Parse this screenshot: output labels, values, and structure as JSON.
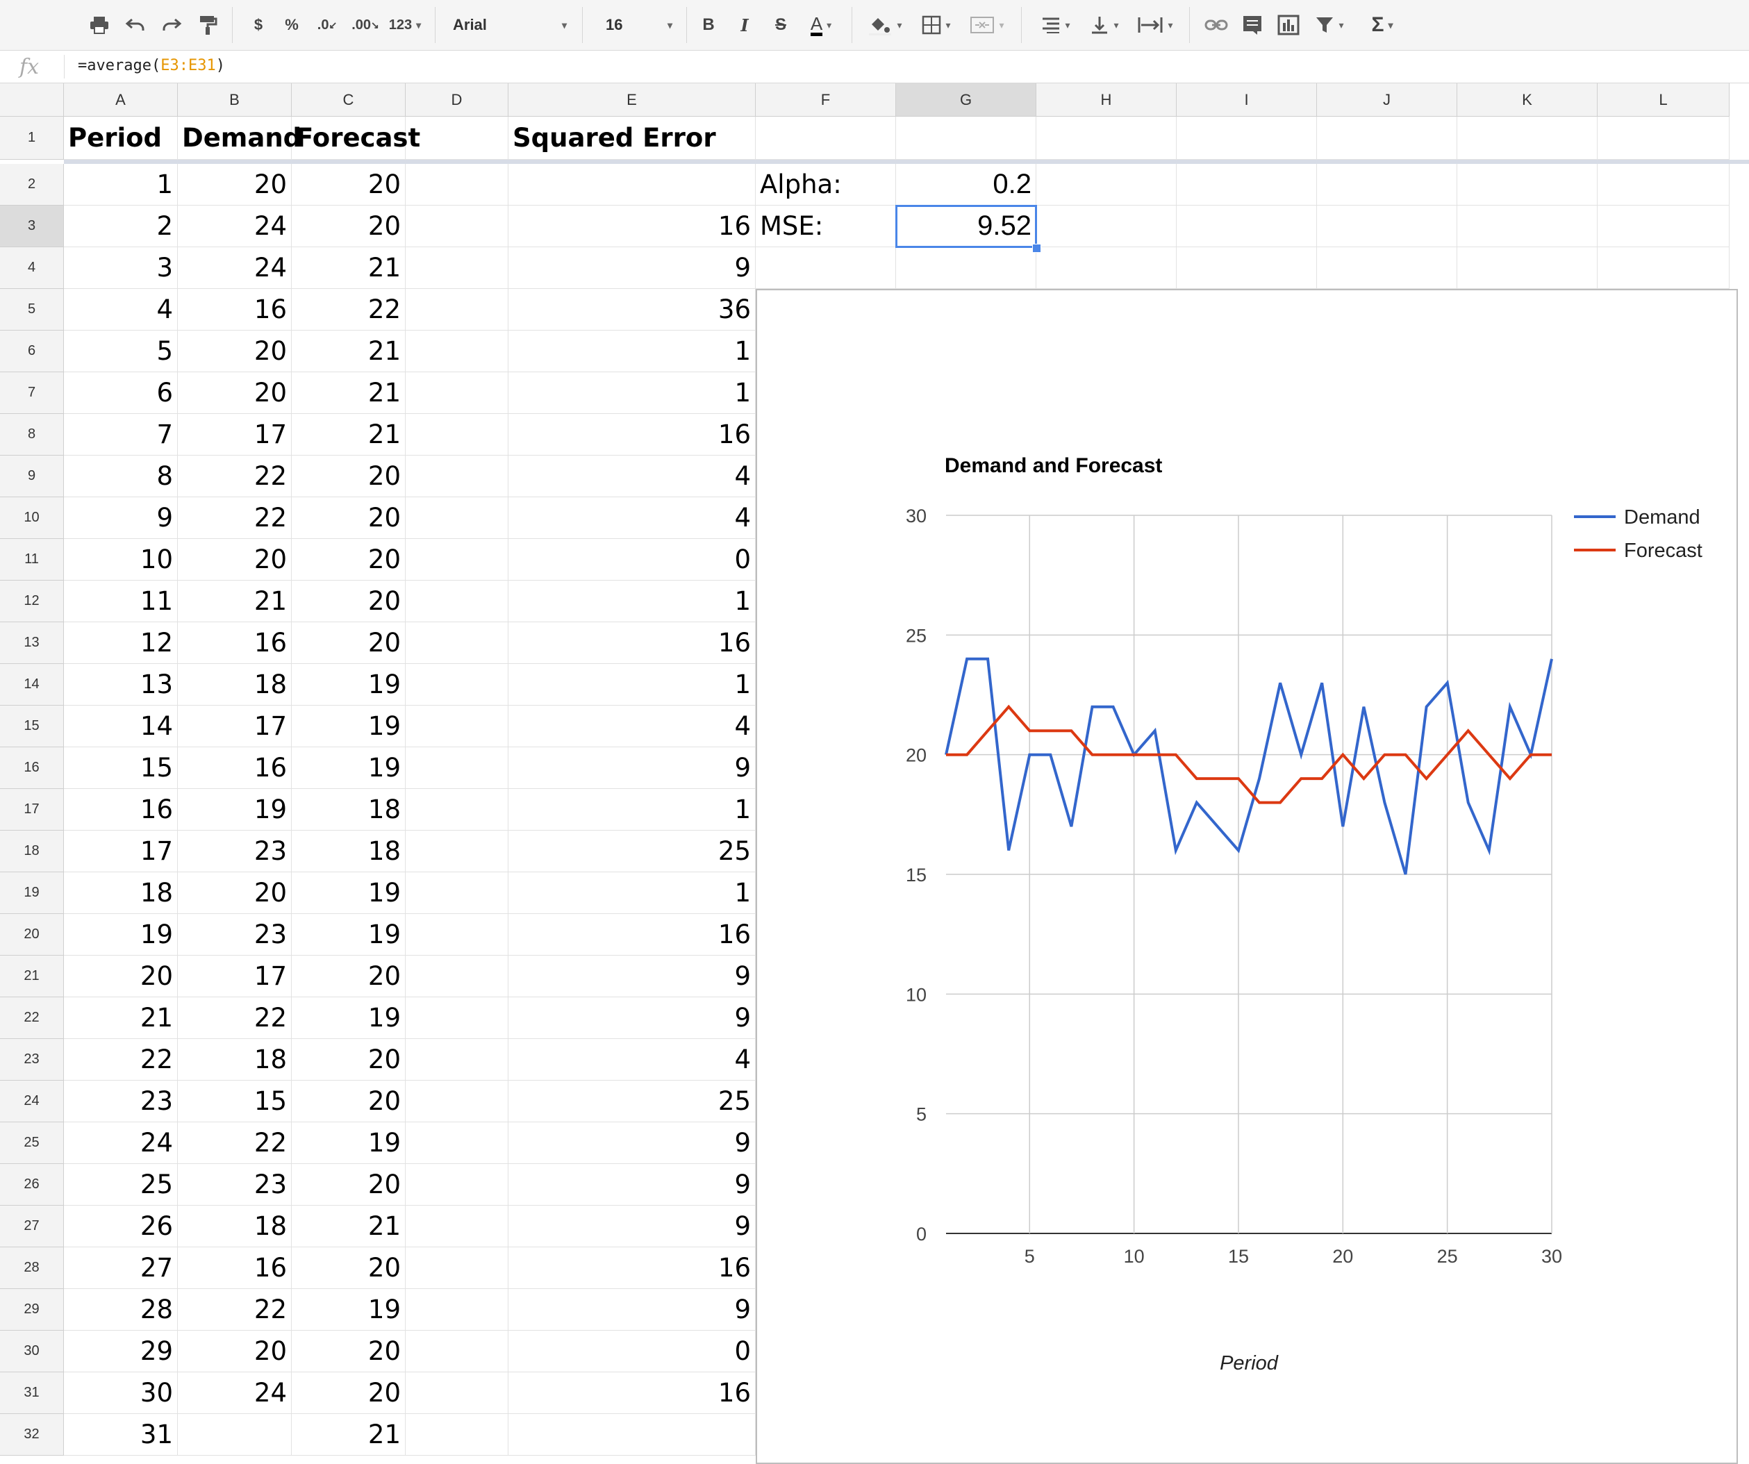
{
  "toolbar": {
    "font_name": "Arial",
    "font_size": "16",
    "number_format_label": "123",
    "currency_label": "$",
    "percent_label": "%",
    "decimal_decrease_label": ".0",
    "decimal_increase_label": ".00",
    "bold_label": "B",
    "italic_label": "I",
    "strike_label": "S",
    "text_color_label": "A",
    "sum_label": "Σ",
    "icons": [
      "print-icon",
      "undo-icon",
      "redo-icon",
      "paint-format-icon",
      "fill-color-icon",
      "borders-icon",
      "merge-icon",
      "align-icon",
      "valign-icon",
      "wrap-icon",
      "link-icon",
      "comment-icon",
      "chart-icon",
      "filter-icon",
      "functions-icon"
    ]
  },
  "formula_bar": {
    "fx_label": "fx",
    "formula_prefix": "=average(",
    "formula_ref": "E3:E31",
    "formula_suffix": ")"
  },
  "columns": [
    "A",
    "B",
    "C",
    "D",
    "E",
    "F",
    "G",
    "H",
    "I",
    "J",
    "K",
    "L"
  ],
  "selected_column": "G",
  "selected_row": 3,
  "header_row": {
    "A": "Period",
    "B": "Demand",
    "C": "Forecast",
    "E": "Squared Error"
  },
  "side_table": {
    "alpha_label": "Alpha:",
    "alpha_value": "0.2",
    "mse_label": "MSE:",
    "mse_value": "9.52"
  },
  "rows": [
    {
      "n": 2,
      "A": "1",
      "B": "20",
      "C": "20",
      "E": ""
    },
    {
      "n": 3,
      "A": "2",
      "B": "24",
      "C": "20",
      "E": "16"
    },
    {
      "n": 4,
      "A": "3",
      "B": "24",
      "C": "21",
      "E": "9"
    },
    {
      "n": 5,
      "A": "4",
      "B": "16",
      "C": "22",
      "E": "36"
    },
    {
      "n": 6,
      "A": "5",
      "B": "20",
      "C": "21",
      "E": "1"
    },
    {
      "n": 7,
      "A": "6",
      "B": "20",
      "C": "21",
      "E": "1"
    },
    {
      "n": 8,
      "A": "7",
      "B": "17",
      "C": "21",
      "E": "16"
    },
    {
      "n": 9,
      "A": "8",
      "B": "22",
      "C": "20",
      "E": "4"
    },
    {
      "n": 10,
      "A": "9",
      "B": "22",
      "C": "20",
      "E": "4"
    },
    {
      "n": 11,
      "A": "10",
      "B": "20",
      "C": "20",
      "E": "0"
    },
    {
      "n": 12,
      "A": "11",
      "B": "21",
      "C": "20",
      "E": "1"
    },
    {
      "n": 13,
      "A": "12",
      "B": "16",
      "C": "20",
      "E": "16"
    },
    {
      "n": 14,
      "A": "13",
      "B": "18",
      "C": "19",
      "E": "1"
    },
    {
      "n": 15,
      "A": "14",
      "B": "17",
      "C": "19",
      "E": "4"
    },
    {
      "n": 16,
      "A": "15",
      "B": "16",
      "C": "19",
      "E": "9"
    },
    {
      "n": 17,
      "A": "16",
      "B": "19",
      "C": "18",
      "E": "1"
    },
    {
      "n": 18,
      "A": "17",
      "B": "23",
      "C": "18",
      "E": "25"
    },
    {
      "n": 19,
      "A": "18",
      "B": "20",
      "C": "19",
      "E": "1"
    },
    {
      "n": 20,
      "A": "19",
      "B": "23",
      "C": "19",
      "E": "16"
    },
    {
      "n": 21,
      "A": "20",
      "B": "17",
      "C": "20",
      "E": "9"
    },
    {
      "n": 22,
      "A": "21",
      "B": "22",
      "C": "19",
      "E": "9"
    },
    {
      "n": 23,
      "A": "22",
      "B": "18",
      "C": "20",
      "E": "4"
    },
    {
      "n": 24,
      "A": "23",
      "B": "15",
      "C": "20",
      "E": "25"
    },
    {
      "n": 25,
      "A": "24",
      "B": "22",
      "C": "19",
      "E": "9"
    },
    {
      "n": 26,
      "A": "25",
      "B": "23",
      "C": "20",
      "E": "9"
    },
    {
      "n": 27,
      "A": "26",
      "B": "18",
      "C": "21",
      "E": "9"
    },
    {
      "n": 28,
      "A": "27",
      "B": "16",
      "C": "20",
      "E": "16"
    },
    {
      "n": 29,
      "A": "28",
      "B": "22",
      "C": "19",
      "E": "9"
    },
    {
      "n": 30,
      "A": "29",
      "B": "20",
      "C": "20",
      "E": "0"
    },
    {
      "n": 31,
      "A": "30",
      "B": "24",
      "C": "20",
      "E": "16"
    },
    {
      "n": 32,
      "A": "31",
      "B": "",
      "C": "21",
      "E": ""
    }
  ],
  "chart_data": {
    "type": "line",
    "title": "Demand and Forecast",
    "xlabel": "Period",
    "ylabel": "",
    "x": [
      1,
      2,
      3,
      4,
      5,
      6,
      7,
      8,
      9,
      10,
      11,
      12,
      13,
      14,
      15,
      16,
      17,
      18,
      19,
      20,
      21,
      22,
      23,
      24,
      25,
      26,
      27,
      28,
      29,
      30
    ],
    "series": [
      {
        "name": "Demand",
        "color": "#3366cc",
        "values": [
          20,
          24,
          24,
          16,
          20,
          20,
          17,
          22,
          22,
          20,
          21,
          16,
          18,
          17,
          16,
          19,
          23,
          20,
          23,
          17,
          22,
          18,
          15,
          22,
          23,
          18,
          16,
          22,
          20,
          24
        ]
      },
      {
        "name": "Forecast",
        "color": "#dc3912",
        "values": [
          20,
          20,
          21,
          22,
          21,
          21,
          21,
          20,
          20,
          20,
          20,
          20,
          19,
          19,
          19,
          18,
          18,
          19,
          19,
          20,
          19,
          20,
          20,
          19,
          20,
          21,
          20,
          19,
          20,
          20
        ]
      }
    ],
    "xlim": [
      1,
      30
    ],
    "ylim": [
      0,
      30
    ],
    "xticks": [
      5,
      10,
      15,
      20,
      25,
      30
    ],
    "yticks": [
      0,
      5,
      10,
      15,
      20,
      25,
      30
    ],
    "grid": true,
    "legend": "right"
  }
}
